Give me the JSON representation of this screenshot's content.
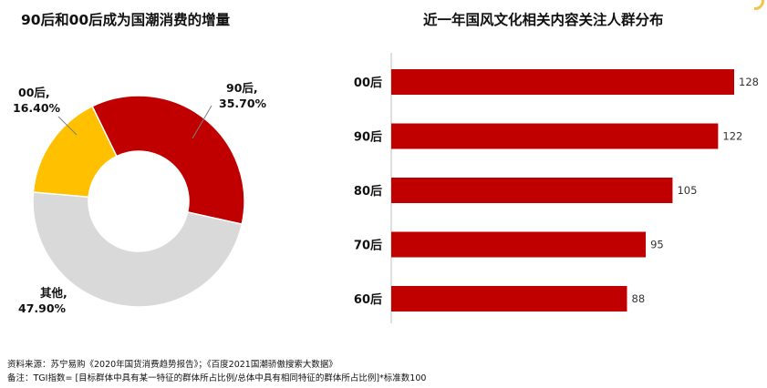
{
  "chart_data": [
    {
      "type": "pie",
      "variant": "donut",
      "title": "90后和00后成为国潮消费的增量",
      "slices": [
        {
          "name": "90后",
          "value_label": "35.70%",
          "value": 35.7,
          "color": "#c00000"
        },
        {
          "name": "其他",
          "value_label": "47.90%",
          "value": 47.9,
          "color": "#d9d9d9"
        },
        {
          "name": "00后",
          "value_label": "16.40%",
          "value": 16.4,
          "color": "#ffc000"
        }
      ]
    },
    {
      "type": "bar",
      "orientation": "horizontal",
      "title": "近一年国风文化相关内容关注人群分布",
      "categories": [
        "00后",
        "90后",
        "80后",
        "70后",
        "60后"
      ],
      "values": [
        128,
        122,
        105,
        95,
        88
      ],
      "color": "#c00000",
      "xlim": [
        0,
        128
      ]
    }
  ],
  "footer": {
    "source": "资料来源：苏宁易购《2020年国货消费趋势报告》；《百度2021国潮骄傲搜索大数据》",
    "note": "备注：TGI指数= [目标群体中具有某一特征的群体所占比例/总体中具有相同特征的群体所占比例]*标准数100"
  }
}
